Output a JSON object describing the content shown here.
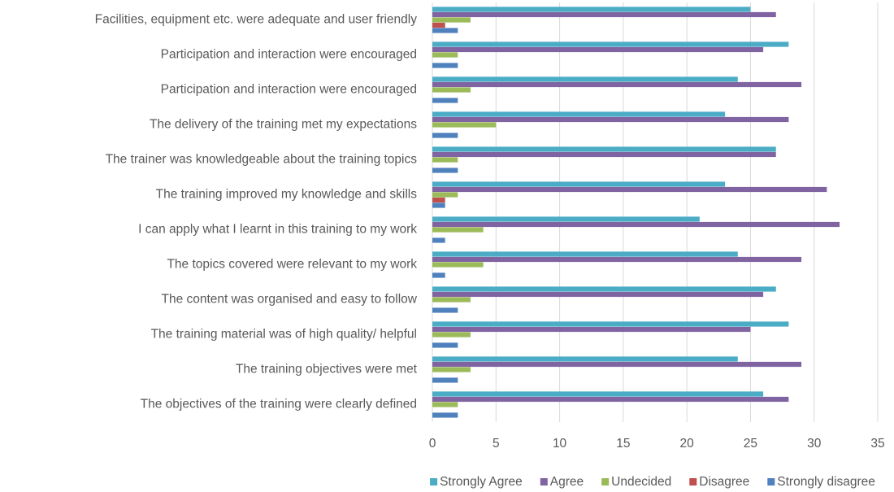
{
  "chart_data": {
    "type": "hbar",
    "categories": [
      "Facilities, equipment etc. were adequate and user friendly",
      "Participation and interaction were encouraged",
      "Participation and interaction were encouraged",
      "The delivery of the training met my expectations",
      "The trainer was knowledgeable about the training topics",
      "The training improved my knowledge and skills",
      "I can apply what I learnt in this training to my work",
      "The topics covered were relevant to my work",
      "The content was organised and easy to follow",
      "The training material was of high quality/ helpful",
      "The training objectives were met",
      "The objectives of the training were clearly defined"
    ],
    "series": [
      {
        "name": "Strongly Agree",
        "color": "#4bacc6",
        "values": [
          25,
          28,
          24,
          23,
          27,
          23,
          21,
          24,
          27,
          28,
          24,
          26
        ]
      },
      {
        "name": "Agree",
        "color": "#8064a2",
        "values": [
          27,
          26,
          29,
          28,
          27,
          31,
          32,
          29,
          26,
          25,
          29,
          28
        ]
      },
      {
        "name": "Undecided",
        "color": "#9bbb59",
        "values": [
          3,
          2,
          3,
          5,
          2,
          2,
          4,
          4,
          3,
          3,
          3,
          2
        ]
      },
      {
        "name": "Disagree",
        "color": "#c0504d",
        "values": [
          1,
          0,
          0,
          0,
          0,
          1,
          0,
          0,
          0,
          0,
          0,
          0
        ]
      },
      {
        "name": "Strongly disagree",
        "color": "#4f81bd",
        "values": [
          2,
          2,
          2,
          2,
          2,
          1,
          1,
          1,
          2,
          2,
          2,
          2
        ]
      }
    ],
    "xlim": [
      0,
      35
    ],
    "xticks": [
      0,
      5,
      10,
      15,
      20,
      25,
      30,
      35
    ],
    "grid": true,
    "legend": "bottom"
  }
}
